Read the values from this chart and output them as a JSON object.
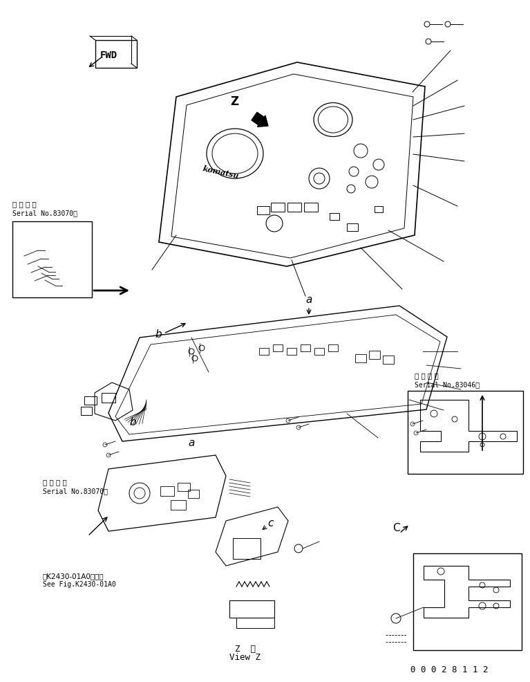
{
  "bg_color": "#ffffff",
  "line_color": "#000000",
  "part_number": "0 0 0 2 8 1 1 2",
  "z_view_label1": "Z  視",
  "z_view_label2": "View Z",
  "fwd_label": "FWD",
  "serial_left_top_label1": "適 用 号 機",
  "serial_left_top_label2": "Serial No.83070～",
  "serial_left_bottom_label1": "適 用 号 機",
  "serial_left_bottom_label2": "Serial No.83070～",
  "serial_right_label1": "適 用 号 機",
  "serial_right_label2": "Serial No.83046～",
  "see_fig_label1": "第K2430-01A0図参照",
  "see_fig_label2": "See Fig.K2430-01A0",
  "fig_size": [
    7.67,
    9.86
  ],
  "dpi": 100
}
